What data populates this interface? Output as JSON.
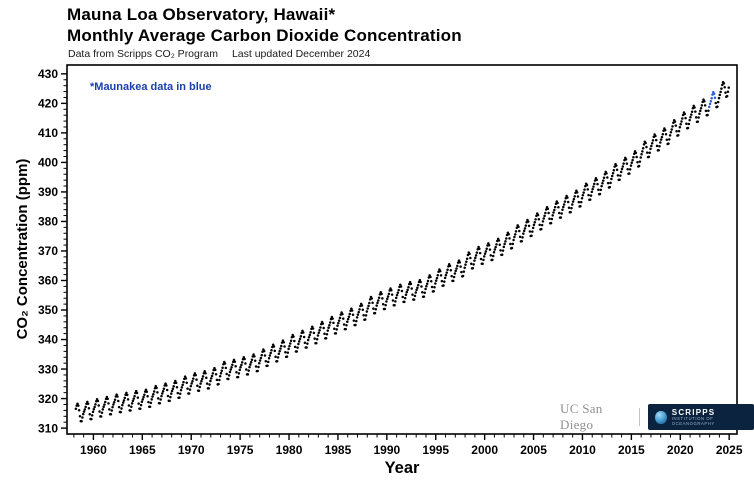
{
  "header": {
    "title": "Mauna Loa Observatory, Hawaii*",
    "subtitle": "Monthly Average Carbon Dioxide Concentration",
    "source": "Data from Scripps CO₂ Program",
    "updated": "Last updated December 2024"
  },
  "note": {
    "text": "*Maunakea data in blue"
  },
  "logos": {
    "ucsd": "UC San Diego",
    "scripps_line1": "SCRIPPS",
    "scripps_line2": "INSTITUTION OF OCEANOGRAPHY"
  },
  "chart_data": {
    "type": "scatter",
    "title": "Mauna Loa Observatory, Hawaii* — Monthly Average Carbon Dioxide Concentration",
    "xlabel": "Year",
    "ylabel": "CO₂ Concentration (ppm)",
    "xlim": [
      1957.3,
      2025.8
    ],
    "ylim": [
      308,
      433
    ],
    "x_ticks": [
      1960,
      1965,
      1970,
      1975,
      1980,
      1985,
      1990,
      1995,
      2000,
      2005,
      2010,
      2015,
      2020,
      2025
    ],
    "y_ticks": [
      310,
      320,
      330,
      340,
      350,
      360,
      370,
      380,
      390,
      400,
      410,
      420,
      430
    ],
    "x_minor_step": 1,
    "y_minor_step": 2,
    "grid": false,
    "start": [
      1958,
      3
    ],
    "years": [
      1958,
      1959,
      1960,
      1961,
      1962,
      1963,
      1964,
      1965,
      1966,
      1967,
      1968,
      1969,
      1970,
      1971,
      1972,
      1973,
      1974,
      1975,
      1976,
      1977,
      1978,
      1979,
      1980,
      1981,
      1982,
      1983,
      1984,
      1985,
      1986,
      1987,
      1988,
      1989,
      1990,
      1991,
      1992,
      1993,
      1994,
      1995,
      1996,
      1997,
      1998,
      1999,
      2000,
      2001,
      2002,
      2003,
      2004,
      2005,
      2006,
      2007,
      2008,
      2009,
      2010,
      2011,
      2012,
      2013,
      2014,
      2015,
      2016,
      2017,
      2018,
      2019,
      2020,
      2021,
      2022,
      2023,
      2024
    ],
    "annual_mean": [
      315.34,
      315.97,
      316.91,
      317.64,
      318.45,
      318.99,
      319.62,
      320.04,
      321.37,
      322.18,
      323.05,
      324.62,
      325.68,
      326.32,
      327.46,
      329.68,
      330.19,
      331.13,
      332.03,
      333.84,
      335.41,
      336.84,
      338.76,
      340.12,
      341.48,
      343.15,
      344.87,
      346.35,
      347.61,
      349.31,
      351.69,
      353.2,
      354.45,
      355.7,
      356.54,
      357.21,
      358.96,
      360.97,
      362.74,
      363.88,
      366.84,
      368.54,
      369.71,
      371.32,
      373.45,
      375.98,
      377.7,
      379.98,
      382.09,
      384.02,
      385.83,
      387.64,
      390.1,
      391.85,
      394.06,
      396.74,
      398.81,
      401.01,
      404.41,
      406.76,
      408.72,
      411.65,
      414.21,
      416.41,
      418.53,
      421.08,
      424.61
    ],
    "seasonal_offsets": [
      -0.1,
      0.6,
      1.4,
      2.4,
      3.0,
      2.3,
      0.7,
      -1.4,
      -3.1,
      -3.2,
      -2.0,
      -0.9
    ],
    "maunakea_months": [
      "2022-12",
      "2023-01",
      "2023-02",
      "2023-03",
      "2023-04",
      "2023-05",
      "2023-06",
      "2023-07"
    ],
    "colors": {
      "points": "#000000",
      "maunakea": "#2b5fd9",
      "note": "#1a3fae",
      "axis": "#000000"
    }
  }
}
